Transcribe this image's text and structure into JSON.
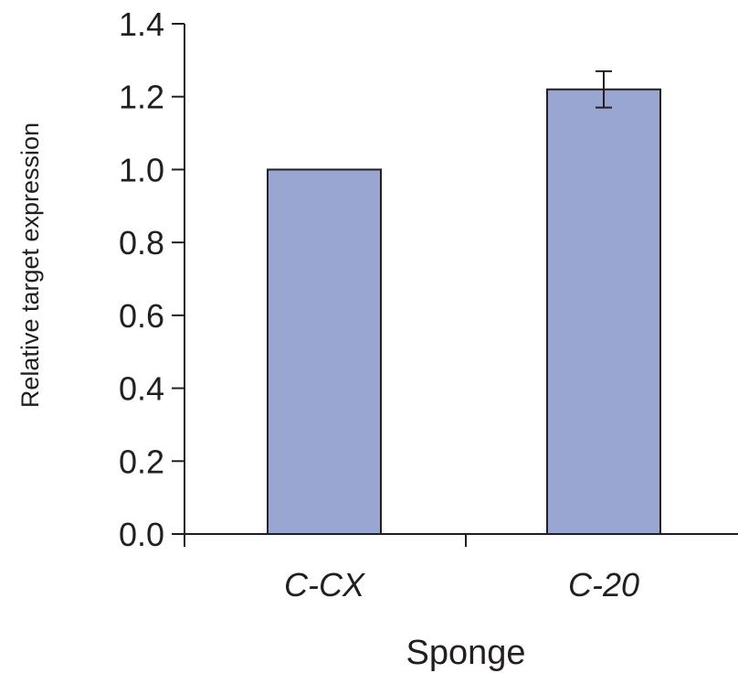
{
  "chart_data": {
    "type": "bar",
    "title": "",
    "xlabel": "Sponge",
    "ylabel": "Relative target expression",
    "categories": [
      "C-CX",
      "C-20"
    ],
    "values": [
      1.0,
      1.22
    ],
    "error": [
      0.0,
      0.05
    ],
    "ylim": [
      0,
      1.4
    ],
    "yticks": [
      "0.0",
      "0.2",
      "0.4",
      "0.6",
      "0.8",
      "1.0",
      "1.2",
      "1.4"
    ],
    "grid": false,
    "legend": "none",
    "colors": {
      "bar_fill": "#9aa6d2",
      "bar_stroke": "#231f20",
      "axis": "#231f20"
    }
  }
}
